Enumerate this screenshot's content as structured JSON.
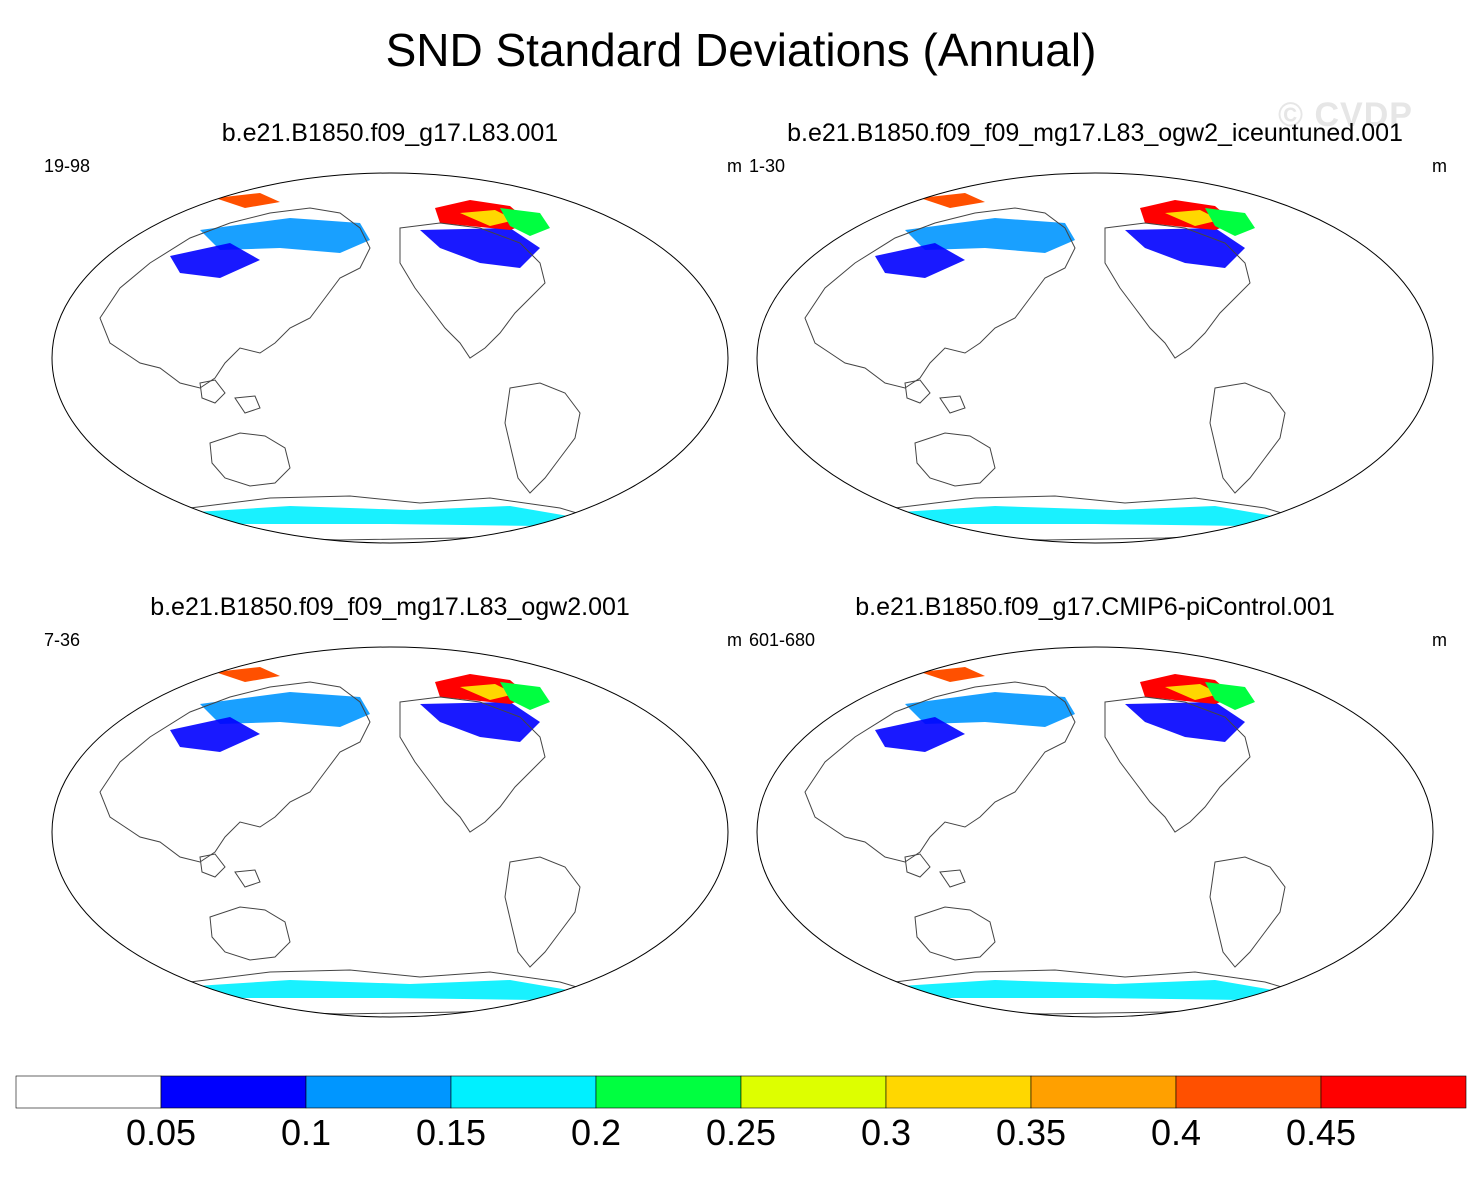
{
  "title": "SND Standard Deviations (Annual)",
  "watermark": "© CVDP",
  "panels": [
    {
      "title": "b.e21.B1850.f09_g17.L83.001",
      "years": "19-98",
      "units": "m"
    },
    {
      "title": "b.e21.B1850.f09_f09_mg17.L83_ogw2_iceuntuned.001",
      "years": "1-30",
      "units": "m"
    },
    {
      "title": "b.e21.B1850.f09_f09_mg17.L83_ogw2.001",
      "years": "7-36",
      "units": "m"
    },
    {
      "title": "b.e21.B1850.f09_g17.CMIP6-piControl.001",
      "years": "601-680",
      "units": "m"
    }
  ],
  "colorbar": {
    "levels": [
      "0.05",
      "0.1",
      "0.15",
      "0.2",
      "0.25",
      "0.3",
      "0.35",
      "0.4",
      "0.45"
    ],
    "colors": [
      "#ffffff",
      "#0000ff",
      "#0096ff",
      "#00f0ff",
      "#00ff40",
      "#ddff00",
      "#ffd700",
      "#ffa000",
      "#ff5000",
      "#ff0000"
    ]
  }
}
